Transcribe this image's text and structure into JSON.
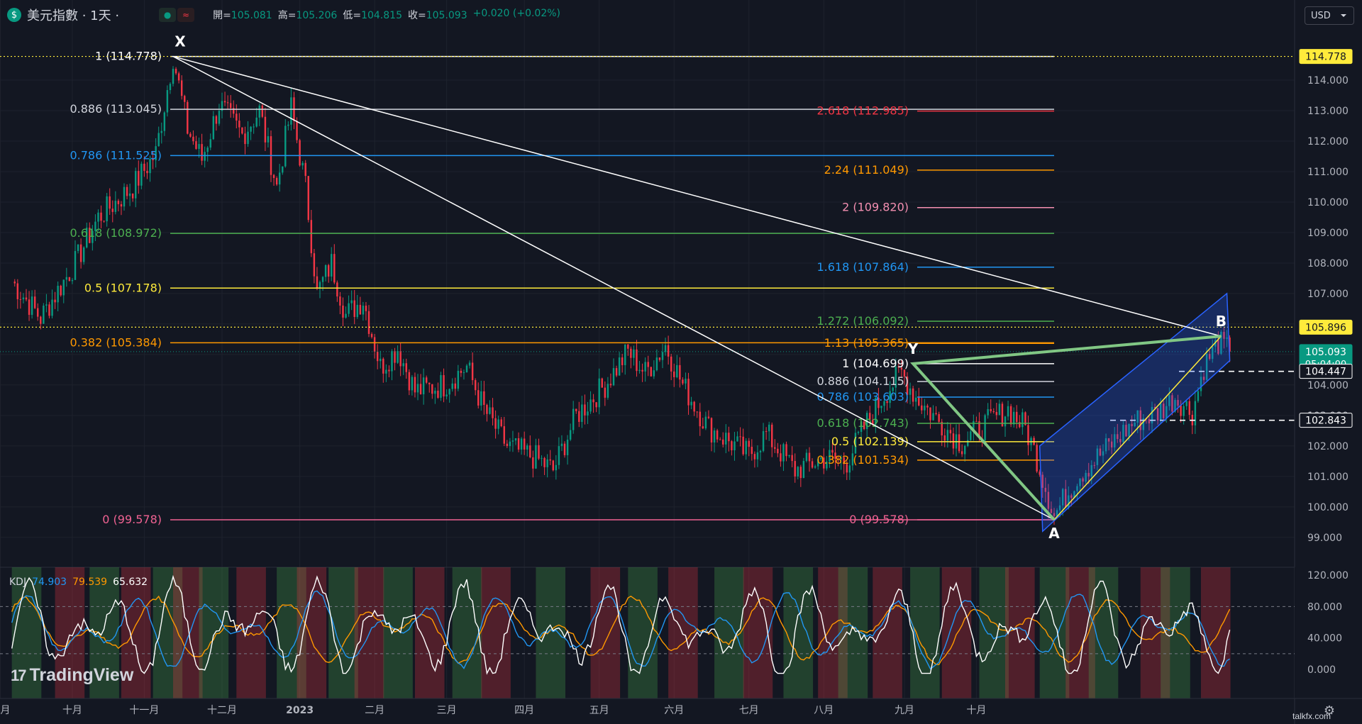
{
  "header": {
    "symbol": "美元指數 · 1天 ·",
    "coin_icon": "dollar-coin-icon",
    "open_label": "開",
    "open": "105.081",
    "high_label": "高",
    "high": "105.206",
    "low_label": "低",
    "low": "104.815",
    "close_label": "收",
    "close": "105.093",
    "change": "+0.020 (+0.02%)"
  },
  "currency": "USD",
  "colors": {
    "up": "#089981",
    "down": "#f23645",
    "bg": "#131722",
    "grid": "#1e222d",
    "channel": "#2962ff"
  },
  "chart_data": [
    {
      "type": "candlestick",
      "title": "",
      "x_ticks": [
        "九月",
        "十月",
        "十一月",
        "十二月",
        "2023",
        "二月",
        "三月",
        "四月",
        "五月",
        "六月",
        "七月",
        "八月",
        "九月",
        "十月"
      ],
      "y_ticks": [
        "99.000",
        "100.000",
        "101.000",
        "102.000",
        "103.000",
        "104.000",
        "105.000",
        "106.000",
        "107.000",
        "108.000",
        "109.000",
        "110.000",
        "111.000",
        "112.000",
        "113.000",
        "114.000"
      ],
      "ylim": [
        98.5,
        115.5
      ],
      "anchor_closes": [
        {
          "t": 0,
          "v": 107.4
        },
        {
          "t": 10,
          "v": 106.2
        },
        {
          "t": 22,
          "v": 108.0
        },
        {
          "t": 30,
          "v": 109.5
        },
        {
          "t": 42,
          "v": 110.5
        },
        {
          "t": 50,
          "v": 111.6
        },
        {
          "t": 56,
          "v": 114.778
        },
        {
          "t": 61,
          "v": 112.4
        },
        {
          "t": 66,
          "v": 111.4
        },
        {
          "t": 72,
          "v": 113.2
        },
        {
          "t": 80,
          "v": 112.2
        },
        {
          "t": 86,
          "v": 113.0
        },
        {
          "t": 92,
          "v": 110.5
        },
        {
          "t": 97,
          "v": 113.1
        },
        {
          "t": 102,
          "v": 110.5
        },
        {
          "t": 106,
          "v": 107.0
        },
        {
          "t": 111,
          "v": 108.0
        },
        {
          "t": 116,
          "v": 106.3
        },
        {
          "t": 122,
          "v": 106.8
        },
        {
          "t": 128,
          "v": 104.6
        },
        {
          "t": 134,
          "v": 105.2
        },
        {
          "t": 140,
          "v": 103.8
        },
        {
          "t": 150,
          "v": 104.0
        },
        {
          "t": 158,
          "v": 104.6
        },
        {
          "t": 164,
          "v": 103.2
        },
        {
          "t": 172,
          "v": 102.0
        },
        {
          "t": 182,
          "v": 101.6
        },
        {
          "t": 188,
          "v": 101.2
        },
        {
          "t": 196,
          "v": 103.0
        },
        {
          "t": 206,
          "v": 104.0
        },
        {
          "t": 214,
          "v": 105.1
        },
        {
          "t": 220,
          "v": 104.4
        },
        {
          "t": 227,
          "v": 105.3
        },
        {
          "t": 233,
          "v": 104.0
        },
        {
          "t": 242,
          "v": 102.6
        },
        {
          "t": 250,
          "v": 102.1
        },
        {
          "t": 256,
          "v": 101.7
        },
        {
          "t": 262,
          "v": 102.4
        },
        {
          "t": 272,
          "v": 101.2
        },
        {
          "t": 282,
          "v": 101.6
        },
        {
          "t": 290,
          "v": 101.5
        },
        {
          "t": 296,
          "v": 102.6
        },
        {
          "t": 303,
          "v": 103.7
        },
        {
          "t": 309,
          "v": 104.4
        },
        {
          "t": 314,
          "v": 103.6
        },
        {
          "t": 322,
          "v": 102.8
        },
        {
          "t": 330,
          "v": 102.1
        },
        {
          "t": 338,
          "v": 102.7
        },
        {
          "t": 346,
          "v": 103.2
        },
        {
          "t": 352,
          "v": 102.6
        },
        {
          "t": 356,
          "v": 101.6
        },
        {
          "t": 362,
          "v": 99.7
        },
        {
          "t": 370,
          "v": 101.0
        },
        {
          "t": 380,
          "v": 101.9
        },
        {
          "t": 390,
          "v": 102.8
        },
        {
          "t": 398,
          "v": 103.1
        },
        {
          "t": 404,
          "v": 103.6
        },
        {
          "t": 410,
          "v": 103.1
        },
        {
          "t": 414,
          "v": 104.6
        },
        {
          "t": 419,
          "v": 105.4
        },
        {
          "t": 423,
          "v": 105.093
        }
      ],
      "fib_retracement_xa": [
        {
          "level": "1 (114.778)",
          "value": 114.778,
          "color": "#ffffff"
        },
        {
          "level": "0.886 (113.045)",
          "value": 113.045,
          "color": "#d1d4dc"
        },
        {
          "level": "0.786 (111.525)",
          "value": 111.525,
          "color": "#2196f3"
        },
        {
          "level": "0.618 (108.972)",
          "value": 108.972,
          "color": "#4caf50"
        },
        {
          "level": "0.5 (107.178)",
          "value": 107.178,
          "color": "#ffeb3b"
        },
        {
          "level": "0.382 (105.384)",
          "value": 105.384,
          "color": "#ff9800"
        },
        {
          "level": "0 (99.578)",
          "value": 99.578,
          "color": "#f06292"
        }
      ],
      "fib_retracement_ya": [
        {
          "level": "1 (104.699)",
          "value": 104.699,
          "color": "#ffffff"
        },
        {
          "level": "0.886 (104.115)",
          "value": 104.115,
          "color": "#d1d4dc"
        },
        {
          "level": "0.786 (103.603)",
          "value": 103.603,
          "color": "#2196f3"
        },
        {
          "level": "0.618 (102.743)",
          "value": 102.743,
          "color": "#4caf50"
        },
        {
          "level": "0.5 (102.139)",
          "value": 102.139,
          "color": "#ffeb3b"
        },
        {
          "level": "0.382 (101.534)",
          "value": 101.534,
          "color": "#ff9800"
        },
        {
          "level": "0 (99.578)",
          "value": 99.578,
          "color": "#f06292"
        }
      ],
      "fib_extension_ya": [
        {
          "level": "2.618 (112.985)",
          "value": 112.985,
          "color": "#f23645"
        },
        {
          "level": "2.24 (111.049)",
          "value": 111.049,
          "color": "#ff9800"
        },
        {
          "level": "2 (109.820)",
          "value": 109.82,
          "color": "#f48fb1"
        },
        {
          "level": "1.618 (107.864)",
          "value": 107.864,
          "color": "#2196f3"
        },
        {
          "level": "1.272 (106.092)",
          "value": 106.092,
          "color": "#4caf50"
        },
        {
          "level": "1.13 (105.365)",
          "value": 105.365,
          "color": "#ff9800"
        }
      ],
      "pattern_points": [
        {
          "label": "X",
          "t": 56,
          "v": 114.778
        },
        {
          "label": "A",
          "t": 362,
          "v": 99.578
        },
        {
          "label": "Y",
          "t": 313,
          "v": 104.699
        },
        {
          "label": "B",
          "t": 420,
          "v": 105.6
        }
      ],
      "price_labels": [
        {
          "text": "114.778",
          "value": 114.778,
          "style": "yellow"
        },
        {
          "text": "105.896",
          "value": 105.896,
          "style": "yellow"
        },
        {
          "text": "105.093",
          "value": 105.093,
          "style": "green",
          "sub": "05:04:00"
        },
        {
          "text": "104.447",
          "value": 104.447,
          "style": "dark"
        },
        {
          "text": "102.843",
          "value": 102.843,
          "style": "dark"
        }
      ]
    },
    {
      "type": "line",
      "title": "KDJ",
      "series": [
        {
          "name": "K",
          "value": "74.903",
          "color": "#2196f3"
        },
        {
          "name": "D",
          "value": "79.539",
          "color": "#ff9800"
        },
        {
          "name": "J",
          "value": "65.632",
          "color": "#ffffff"
        }
      ],
      "y_ticks": [
        "120.000",
        "80.000",
        "40.000",
        "0.000"
      ],
      "ylim": [
        -20,
        130
      ],
      "guide_levels": [
        80,
        20
      ]
    }
  ],
  "watermark": "talkfx.com",
  "logo_text": "TradingView"
}
